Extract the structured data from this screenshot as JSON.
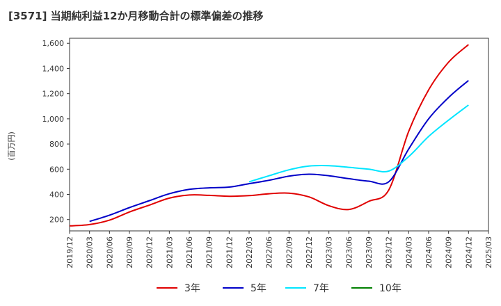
{
  "title": "[3571]  当期純利益12か月移動合計の標準偏差の推移",
  "ylabel": "(百万円)",
  "chart_data": {
    "type": "line",
    "ylim": [
      110,
      1640
    ],
    "yticks": [
      200,
      400,
      600,
      800,
      1000,
      1200,
      1400,
      1600
    ],
    "ytick_labels": [
      "200",
      "400",
      "600",
      "800",
      "1,000",
      "1,200",
      "1,400",
      "1,600"
    ],
    "xlim": [
      "2019/12",
      "2025/03"
    ],
    "xtick_labels": [
      "2019/12",
      "2020/03",
      "2020/06",
      "2020/09",
      "2020/12",
      "2021/03",
      "2021/06",
      "2021/09",
      "2021/12",
      "2022/03",
      "2022/06",
      "2022/09",
      "2022/12",
      "2023/03",
      "2023/06",
      "2023/09",
      "2023/12",
      "2024/03",
      "2024/06",
      "2024/09",
      "2024/12",
      "2025/03"
    ],
    "grid": true,
    "legend_position": "bottom",
    "series": [
      {
        "name": "3年",
        "color": "#e00000",
        "x": [
          "2019/12",
          "2020/03",
          "2020/06",
          "2020/09",
          "2020/12",
          "2021/03",
          "2021/06",
          "2021/09",
          "2021/12",
          "2022/03",
          "2022/06",
          "2022/09",
          "2022/12",
          "2023/03",
          "2023/06",
          "2023/09",
          "2023/12",
          "2024/03",
          "2024/06",
          "2024/09",
          "2024/12"
        ],
        "y": [
          150,
          160,
          195,
          260,
          315,
          370,
          395,
          392,
          385,
          390,
          405,
          410,
          380,
          310,
          280,
          345,
          435,
          900,
          1230,
          1450,
          1590
        ]
      },
      {
        "name": "5年",
        "color": "#0000c8",
        "x": [
          "2020/03",
          "2020/06",
          "2020/09",
          "2020/12",
          "2021/03",
          "2021/06",
          "2021/09",
          "2021/12",
          "2022/03",
          "2022/06",
          "2022/09",
          "2022/12",
          "2023/03",
          "2023/06",
          "2023/09",
          "2023/12",
          "2024/03",
          "2024/06",
          "2024/09",
          "2024/12"
        ],
        "y": [
          185,
          235,
          295,
          350,
          405,
          440,
          452,
          458,
          485,
          512,
          545,
          560,
          548,
          525,
          505,
          500,
          760,
          1000,
          1170,
          1305
        ]
      },
      {
        "name": "7年",
        "color": "#00e5ff",
        "x": [
          "2022/03",
          "2022/06",
          "2022/09",
          "2022/12",
          "2023/03",
          "2023/06",
          "2023/09",
          "2023/12",
          "2024/03",
          "2024/06",
          "2024/09",
          "2024/12"
        ],
        "y": [
          500,
          548,
          595,
          625,
          628,
          615,
          600,
          585,
          700,
          860,
          990,
          1110
        ]
      },
      {
        "name": "10年",
        "color": "#008000",
        "x": [],
        "y": []
      }
    ]
  }
}
